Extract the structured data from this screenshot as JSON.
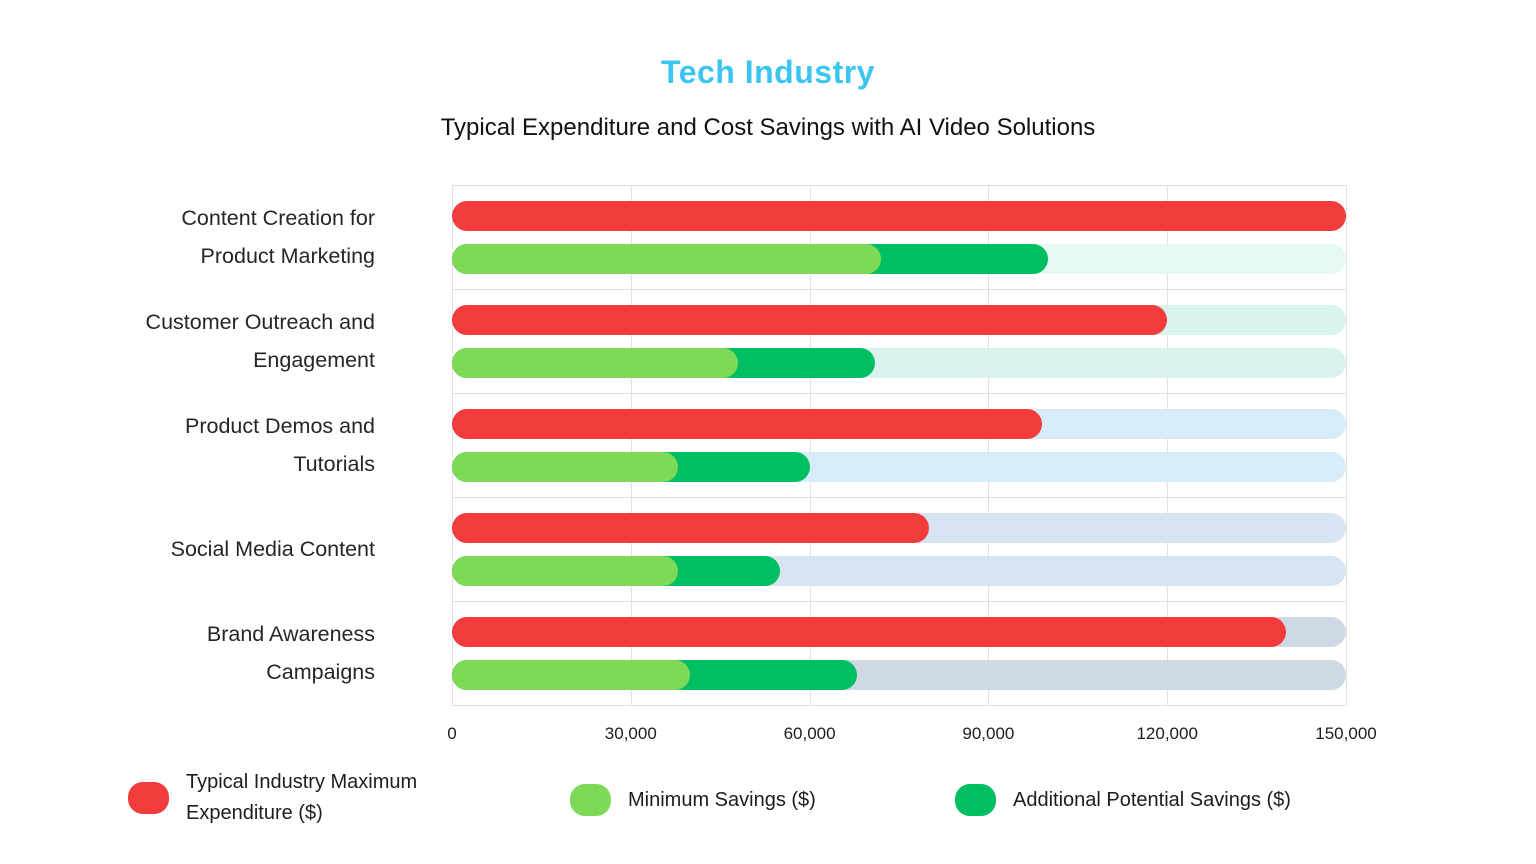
{
  "title": "Tech Industry",
  "subtitle": "Typical Expenditure and Cost Savings with AI Video Solutions",
  "colors": {
    "title_text": "#3cc5f1",
    "expenditure": "#f23c3c",
    "min_savings": "#7ed957",
    "additional_savings": "#00bf63",
    "gridline": "#e2e2e2",
    "tracks": [
      "#e5f8f4",
      "#d9f3ef",
      "#d6edf9",
      "#d7e4f1",
      "#ced9e3"
    ]
  },
  "chart_data": {
    "type": "bar",
    "orientation": "horizontal",
    "title": "Tech Industry",
    "subtitle": "Typical Expenditure and Cost Savings with AI Video Solutions",
    "xlim": [
      0,
      150000
    ],
    "x_ticks": [
      "0",
      "30,000",
      "60,000",
      "90,000",
      "120,000",
      "150,000"
    ],
    "grid": true,
    "track_full_value": 150000,
    "legend_position": "bottom",
    "categories": [
      "Content Creation for Product Marketing",
      "Customer Outreach and Engagement",
      "Product Demos and Tutorials",
      "Social Media Content",
      "Brand Awareness Campaigns"
    ],
    "category_label_lines": [
      [
        "Content Creation for",
        "Product Marketing"
      ],
      [
        "Customer Outreach and",
        "Engagement"
      ],
      [
        "Product Demos and",
        "Tutorials"
      ],
      [
        "Social Media Content"
      ],
      [
        "Brand Awareness",
        "Campaigns"
      ]
    ],
    "series": [
      {
        "name": "Typical Industry Maximum Expenditure ($)",
        "values": [
          150000,
          120000,
          99000,
          80000,
          140000
        ]
      },
      {
        "name": "Minimum Savings ($)",
        "values": [
          72000,
          48000,
          38000,
          38000,
          40000
        ]
      },
      {
        "name": "Additional Potential Savings ($)",
        "values": [
          28000,
          23000,
          22000,
          17000,
          28000
        ]
      }
    ]
  },
  "legend": {
    "items": [
      {
        "lines": [
          "Typical Industry Maximum",
          "Expenditure ($)"
        ],
        "color_key": "expenditure"
      },
      {
        "lines": [
          "Minimum Savings ($)"
        ],
        "color_key": "min_savings"
      },
      {
        "lines": [
          "Additional Potential Savings ($)"
        ],
        "color_key": "additional_savings"
      }
    ]
  }
}
